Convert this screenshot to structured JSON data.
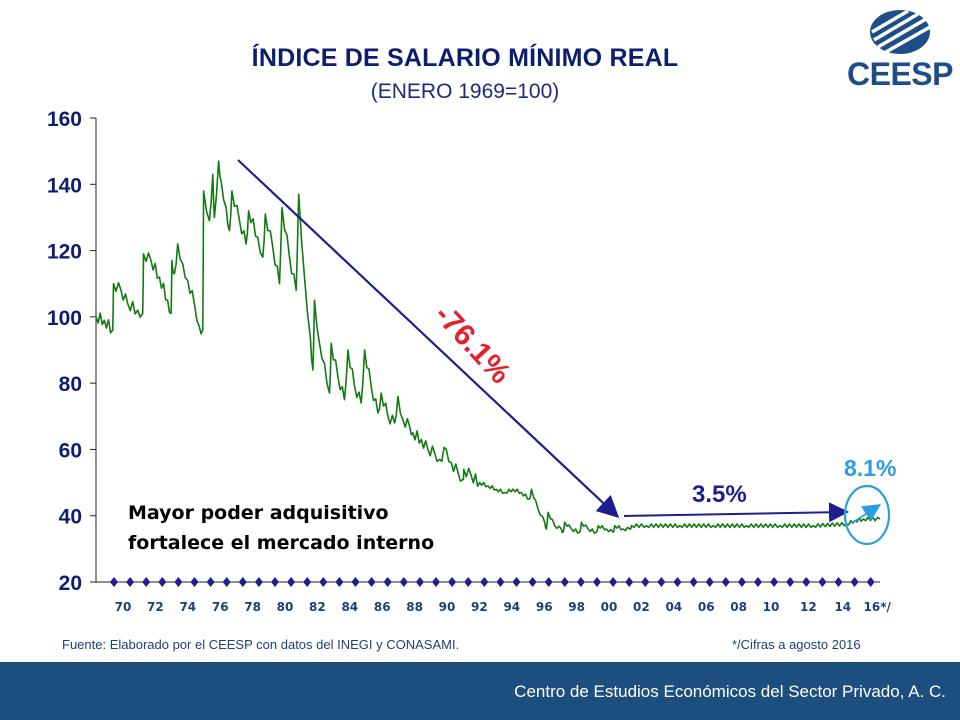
{
  "header": {
    "title": "ÍNDICE DE SALARIO MÍNIMO REAL",
    "subtitle": "(ENERO 1969=100)"
  },
  "logo": {
    "text": "CEESP",
    "color": "#1d4e88"
  },
  "colors": {
    "series": "#127a12",
    "arrow_main": "#1e1e8c",
    "highlight": "#2a9ee0",
    "axis_labels": "#0d1e6e",
    "footer_bg": "#1c4f7e"
  },
  "chart_data": {
    "type": "line",
    "title": "ÍNDICE DE SALARIO MÍNIMO REAL",
    "subtitle": "(ENERO 1969=100)",
    "ylim": [
      20,
      160
    ],
    "y_ticks": [
      "160",
      "140",
      "120",
      "100",
      "80",
      "60",
      "40",
      "20"
    ],
    "x_ticks": [
      "70",
      "72",
      "74",
      "76",
      "78",
      "80",
      "82",
      "84",
      "86",
      "88",
      "90",
      "92",
      "94",
      "96",
      "98",
      "00",
      "02",
      "04",
      "06",
      "08",
      "10",
      "12",
      "14",
      "16*/"
    ],
    "grid": false,
    "series": [
      {
        "points": [
          [
            1969.0,
            100
          ],
          [
            1969.5,
            99
          ],
          [
            1970.0,
            96
          ],
          [
            1970.05,
            110
          ],
          [
            1970.5,
            108
          ],
          [
            1970.9,
            104
          ],
          [
            1971.5,
            102
          ],
          [
            1971.8,
            101
          ],
          [
            1971.85,
            119
          ],
          [
            1972.3,
            117
          ],
          [
            1972.8,
            112
          ],
          [
            1973.3,
            105
          ],
          [
            1973.5,
            101
          ],
          [
            1973.55,
            117
          ],
          [
            1973.7,
            113
          ],
          [
            1973.9,
            122
          ],
          [
            1974.2,
            116
          ],
          [
            1974.5,
            111
          ],
          [
            1974.9,
            104
          ],
          [
            1975.2,
            97
          ],
          [
            1975.4,
            96
          ],
          [
            1975.45,
            138
          ],
          [
            1975.8,
            129
          ],
          [
            1976.0,
            143
          ],
          [
            1976.1,
            130
          ],
          [
            1976.35,
            147
          ],
          [
            1976.5,
            141
          ],
          [
            1976.8,
            133
          ],
          [
            1977.0,
            126
          ],
          [
            1977.15,
            138
          ],
          [
            1977.6,
            129
          ],
          [
            1978.0,
            122
          ],
          [
            1978.15,
            132
          ],
          [
            1978.7,
            124
          ],
          [
            1979.0,
            118
          ],
          [
            1979.15,
            131
          ],
          [
            1979.6,
            121
          ],
          [
            1980.0,
            110
          ],
          [
            1980.15,
            133
          ],
          [
            1980.6,
            118
          ],
          [
            1981.0,
            108
          ],
          [
            1981.15,
            137
          ],
          [
            1981.5,
            112
          ],
          [
            1981.85,
            94
          ],
          [
            1982.0,
            84
          ],
          [
            1982.1,
            105
          ],
          [
            1982.4,
            92
          ],
          [
            1982.7,
            86
          ],
          [
            1983.0,
            77
          ],
          [
            1983.1,
            92
          ],
          [
            1983.5,
            82
          ],
          [
            1983.9,
            75
          ],
          [
            1984.1,
            90
          ],
          [
            1984.5,
            79
          ],
          [
            1984.9,
            74
          ],
          [
            1985.1,
            90
          ],
          [
            1985.5,
            79
          ],
          [
            1985.9,
            71
          ],
          [
            1986.1,
            77
          ],
          [
            1986.5,
            70
          ],
          [
            1986.9,
            68
          ],
          [
            1987.1,
            76
          ],
          [
            1987.4,
            69
          ],
          [
            1987.8,
            67
          ],
          [
            1988.0,
            65
          ],
          [
            1988.5,
            63
          ],
          [
            1988.9,
            60
          ],
          [
            1989.3,
            59
          ],
          [
            1989.6,
            57
          ],
          [
            1990.0,
            60
          ],
          [
            1990.3,
            56
          ],
          [
            1990.7,
            53
          ],
          [
            1991.0,
            51
          ],
          [
            1991.05,
            54
          ],
          [
            1991.5,
            52
          ],
          [
            1992.0,
            50
          ],
          [
            1992.5,
            49
          ],
          [
            1993.0,
            48
          ],
          [
            1993.5,
            47
          ],
          [
            1994.0,
            48
          ],
          [
            1994.5,
            47
          ],
          [
            1995.0,
            45
          ],
          [
            1995.1,
            48
          ],
          [
            1995.5,
            42
          ],
          [
            1995.9,
            38
          ],
          [
            1996.0,
            36
          ],
          [
            1996.1,
            41
          ],
          [
            1996.5,
            37
          ],
          [
            1996.9,
            36
          ],
          [
            1997.0,
            35
          ],
          [
            1997.1,
            38
          ],
          [
            1997.5,
            36
          ],
          [
            1998.0,
            35
          ],
          [
            1998.1,
            38
          ],
          [
            1998.5,
            36
          ],
          [
            1999.0,
            35
          ],
          [
            1999.1,
            37
          ],
          [
            1999.6,
            36
          ],
          [
            2000.0,
            35
          ],
          [
            2000.1,
            37
          ],
          [
            2000.6,
            36
          ],
          [
            2001.0,
            36
          ],
          [
            2001.1,
            37
          ],
          [
            2002.0,
            37
          ],
          [
            2004.0,
            37
          ],
          [
            2006.0,
            37
          ],
          [
            2008.0,
            37
          ],
          [
            2010.0,
            37
          ],
          [
            2012.0,
            37
          ],
          [
            2014.0,
            37.5
          ],
          [
            2014.5,
            38.5
          ],
          [
            2015.0,
            39
          ],
          [
            2016.0,
            39
          ]
        ]
      }
    ],
    "annotations": [
      {
        "text": "-76.1%",
        "color": "#e4222b"
      },
      {
        "text": "3.5%",
        "color": "#1e1e8c"
      },
      {
        "text": "8.1%",
        "color": "#2a9ee0"
      },
      {
        "text": "Mayor poder adquisitivo",
        "color": "#000000"
      },
      {
        "text": "fortalece el mercado interno",
        "color": "#000000"
      }
    ]
  },
  "footer": {
    "source": "Fuente: Elaborado por el CEESP con datos del INEGI y CONASAMI.",
    "note": "*/Cifras a agosto 2016",
    "bar_text": "Centro de Estudios Económicos del Sector Privado, A. C."
  }
}
